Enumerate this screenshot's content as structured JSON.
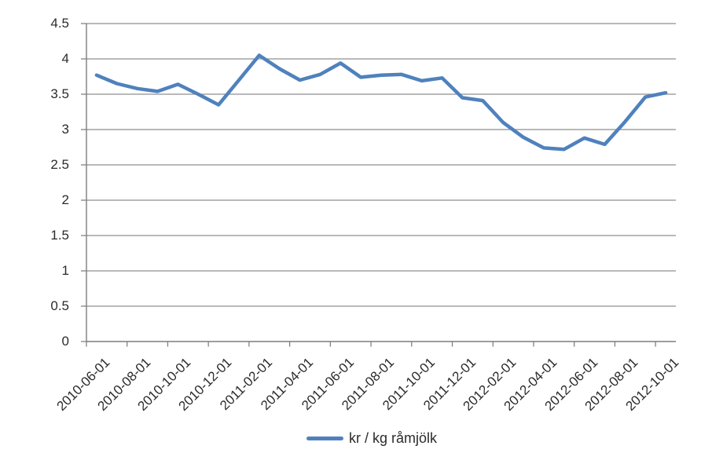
{
  "chart_data": {
    "type": "line",
    "title": "",
    "legend_label": "kr / kg råmjölk",
    "legend_position": "bottom-center",
    "grid": "horizontal",
    "x": [
      "2010-06-01",
      "2010-07-01",
      "2010-08-01",
      "2010-09-01",
      "2010-10-01",
      "2010-11-01",
      "2010-12-01",
      "2011-01-01",
      "2011-02-01",
      "2011-03-01",
      "2011-04-01",
      "2011-05-01",
      "2011-06-01",
      "2011-07-01",
      "2011-08-01",
      "2011-09-01",
      "2011-10-01",
      "2011-11-01",
      "2011-12-01",
      "2012-01-01",
      "2012-02-01",
      "2012-03-01",
      "2012-04-01",
      "2012-05-01",
      "2012-06-01",
      "2012-07-01",
      "2012-08-01",
      "2012-09-01",
      "2012-10-01"
    ],
    "x_tick_labels": [
      "2010-06-01",
      "2010-08-01",
      "2010-10-01",
      "2010-12-01",
      "2011-02-01",
      "2011-04-01",
      "2011-06-01",
      "2011-08-01",
      "2011-10-01",
      "2011-12-01",
      "2012-02-01",
      "2012-04-01",
      "2012-06-01",
      "2012-08-01",
      "2012-10-01"
    ],
    "series": [
      {
        "name": "kr / kg råmjölk",
        "values": [
          3.77,
          3.65,
          3.58,
          3.54,
          3.64,
          3.5,
          3.35,
          3.7,
          4.05,
          3.86,
          3.7,
          3.78,
          3.94,
          3.74,
          3.77,
          3.78,
          3.69,
          3.73,
          3.45,
          3.41,
          3.1,
          2.89,
          2.74,
          2.72,
          2.88,
          2.79,
          3.11,
          3.46,
          3.52
        ]
      }
    ],
    "xlabel": "",
    "ylabel": "",
    "ylim": [
      0,
      4.5
    ],
    "y_ticks": [
      0,
      0.5,
      1,
      1.5,
      2,
      2.5,
      3,
      3.5,
      4,
      4.5
    ],
    "y_tick_labels": [
      "0",
      "0.5",
      "1",
      "1.5",
      "2",
      "2.5",
      "3",
      "3.5",
      "4",
      "4.5"
    ],
    "colors": {
      "series": "#4f81bd",
      "gridline": "#8f8f8f",
      "axis": "#7d7d7d",
      "text": "#2b2b2b",
      "background": "#ffffff"
    }
  }
}
